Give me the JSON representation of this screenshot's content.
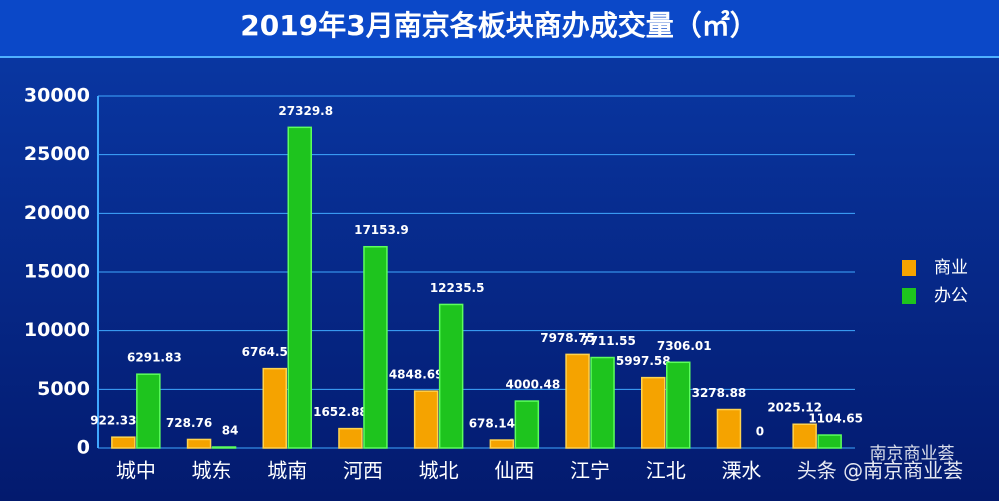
{
  "chart_data": {
    "type": "bar",
    "title": "2019年3月南京各板块商办成交量（㎡）",
    "categories": [
      "城中",
      "城东",
      "城南",
      "河西",
      "城北",
      "仙西",
      "江宁",
      "江北",
      "溧水",
      null
    ],
    "series": [
      {
        "name": "商业",
        "color": "#f5a300",
        "values": [
          922.33,
          728.76,
          6764.5,
          1652.88,
          4848.69,
          678.14,
          7978.75,
          5997.58,
          3278.88,
          2025.12
        ]
      },
      {
        "name": "办公",
        "color": "#1ec41e",
        "values": [
          6291.83,
          84,
          27329.8,
          17153.9,
          12235.5,
          4000.48,
          7711.55,
          7306.01,
          0,
          1104.65
        ]
      }
    ],
    "ylim": [
      0,
      30000
    ],
    "yticks": [
      0,
      5000,
      10000,
      15000,
      20000,
      25000,
      30000
    ],
    "grid": true,
    "legend": "right",
    "watermark": {
      "logo": "南京商业荟",
      "text": "头条 @南京商业荟"
    }
  }
}
